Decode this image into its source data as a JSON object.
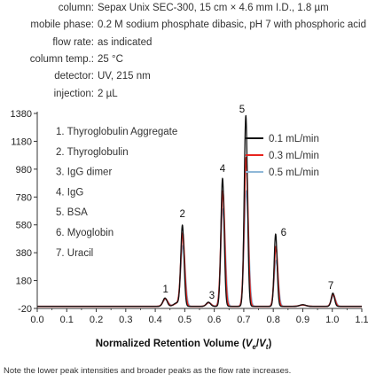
{
  "conditions": [
    {
      "label": "column:",
      "value": "Sepax Unix SEC-300, 15 cm × 4.6 mm I.D., 1.8 µm"
    },
    {
      "label": "mobile phase:",
      "value": "0.2 M sodium phosphate dibasic, pH 7 with phosphoric acid"
    },
    {
      "label": "flow rate:",
      "value": "as indicated"
    },
    {
      "label": "column temp.:",
      "value": "25 °C"
    },
    {
      "label": "detector:",
      "value": "UV, 215 nm"
    },
    {
      "label": "injection:",
      "value": "2 µL"
    }
  ],
  "footnote": "Note the lower peak intensities and broader peaks as the flow rate increases.",
  "chart_data": {
    "type": "line",
    "title": "",
    "xlabel_prefix": "Normalized Retention Volume (",
    "xlabel_v1": "V",
    "xlabel_sub1": "e",
    "xlabel_slash": "/",
    "xlabel_v2": "V",
    "xlabel_sub2": "t",
    "xlabel_suffix": ")",
    "ylabel": "",
    "xlim": [
      0.0,
      1.1
    ],
    "ylim": [
      -20,
      1380
    ],
    "xticks": [
      0.0,
      0.1,
      0.2,
      0.3,
      0.4,
      0.5,
      0.6,
      0.7,
      0.8,
      0.9,
      1.0,
      1.1
    ],
    "xtick_labels": [
      "0.0",
      "0.1",
      "0.2",
      "0.3",
      "0.4",
      "0.5",
      "0.6",
      "0.7",
      "0.8",
      "0.9",
      "1.0",
      "1.1"
    ],
    "yticks": [
      -20,
      180,
      380,
      580,
      780,
      980,
      1180,
      1380
    ],
    "ytick_labels": [
      "-20",
      "180",
      "380",
      "580",
      "780",
      "980",
      "1180",
      "1380"
    ],
    "grid": false,
    "legend_position": "top-right",
    "compound_list": [
      "1. Thyroglobulin Aggregate",
      "2. Thyroglobulin",
      "3. IgG dimer",
      "4. IgG",
      "5. BSA",
      "6. Myoglobin",
      "7. Uracil"
    ],
    "peak_labels": [
      {
        "label": "1",
        "x": 0.435,
        "y": 70
      },
      {
        "label": "2",
        "x": 0.492,
        "y": 610
      },
      {
        "label": "3",
        "x": 0.592,
        "y": 25
      },
      {
        "label": "4",
        "x": 0.628,
        "y": 935
      },
      {
        "label": "5",
        "x": 0.694,
        "y": 1360
      },
      {
        "label": "6",
        "x": 0.835,
        "y": 475
      },
      {
        "label": "7",
        "x": 0.995,
        "y": 95
      }
    ],
    "series": [
      {
        "name": "0.1 mL/min",
        "color": "#111111",
        "baseline": -5,
        "peaks": [
          {
            "x": 0.433,
            "height": 60,
            "width": 0.007
          },
          {
            "x": 0.473,
            "height": 25,
            "width": 0.01
          },
          {
            "x": 0.492,
            "height": 580,
            "width": 0.0055
          },
          {
            "x": 0.58,
            "height": 30,
            "width": 0.007
          },
          {
            "x": 0.628,
            "height": 920,
            "width": 0.0055
          },
          {
            "x": 0.707,
            "height": 1370,
            "width": 0.0055
          },
          {
            "x": 0.808,
            "height": 520,
            "width": 0.005
          },
          {
            "x": 0.9,
            "height": 12,
            "width": 0.01
          },
          {
            "x": 1.002,
            "height": 95,
            "width": 0.0055
          }
        ]
      },
      {
        "name": "0.3 mL/min",
        "color": "#e8251f",
        "baseline": -5,
        "peaks": [
          {
            "x": 0.434,
            "height": 55,
            "width": 0.008
          },
          {
            "x": 0.474,
            "height": 22,
            "width": 0.011
          },
          {
            "x": 0.493,
            "height": 520,
            "width": 0.0065
          },
          {
            "x": 0.581,
            "height": 27,
            "width": 0.008
          },
          {
            "x": 0.629,
            "height": 830,
            "width": 0.0065
          },
          {
            "x": 0.708,
            "height": 1070,
            "width": 0.0065
          },
          {
            "x": 0.809,
            "height": 430,
            "width": 0.006
          },
          {
            "x": 0.9,
            "height": 10,
            "width": 0.011
          },
          {
            "x": 1.003,
            "height": 85,
            "width": 0.0065
          }
        ]
      },
      {
        "name": "0.5 mL/min",
        "color": "#8fb8d8",
        "baseline": -5,
        "peaks": [
          {
            "x": 0.435,
            "height": 50,
            "width": 0.009
          },
          {
            "x": 0.475,
            "height": 20,
            "width": 0.012
          },
          {
            "x": 0.494,
            "height": 430,
            "width": 0.0075
          },
          {
            "x": 0.582,
            "height": 24,
            "width": 0.009
          },
          {
            "x": 0.63,
            "height": 700,
            "width": 0.0075
          },
          {
            "x": 0.709,
            "height": 830,
            "width": 0.0075
          },
          {
            "x": 0.81,
            "height": 330,
            "width": 0.007
          },
          {
            "x": 0.9,
            "height": 9,
            "width": 0.012
          },
          {
            "x": 1.004,
            "height": 75,
            "width": 0.0075
          }
        ]
      }
    ]
  }
}
